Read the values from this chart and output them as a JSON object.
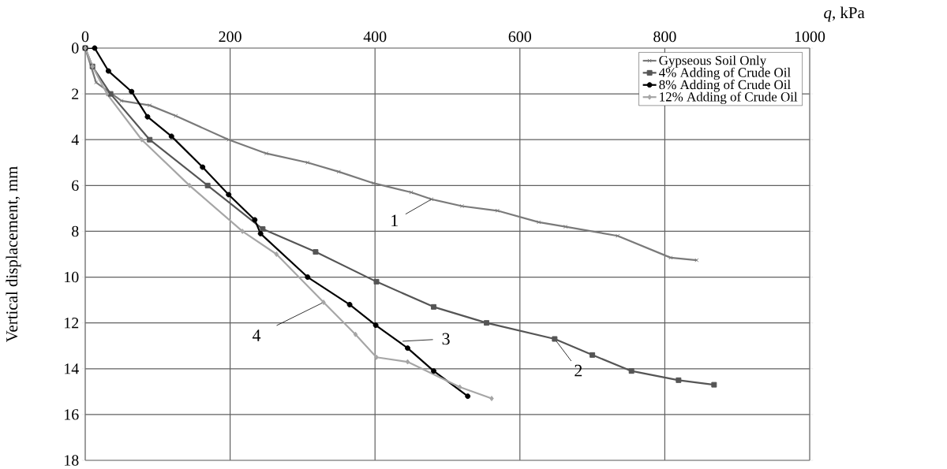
{
  "chart_data": {
    "type": "line",
    "xlabel": "*q*, kPa",
    "ylabel": "Vertical displacement, mm",
    "xlim": [
      0,
      1000
    ],
    "xticks": [
      0,
      200,
      400,
      600,
      800,
      1000
    ],
    "ylim": [
      18,
      0
    ],
    "yticks": [
      0,
      2,
      4,
      6,
      8,
      10,
      12,
      14,
      16,
      18
    ],
    "grid": true,
    "legend": "top right",
    "line_style": "solid",
    "series": [
      {
        "name": "Gypseous Soil Only",
        "color": "#7a7a7a",
        "marker": "cross",
        "x": [
          0,
          15,
          50,
          89,
          125,
          198,
          250,
          307,
          350,
          398,
          450,
          478,
          520,
          569,
          626,
          663,
          735,
          808,
          844
        ],
        "values": [
          0,
          1.5,
          2.3,
          2.5,
          2.96,
          4.0,
          4.6,
          5.0,
          5.4,
          5.9,
          6.3,
          6.6,
          6.9,
          7.1,
          7.6,
          7.8,
          8.2,
          9.15,
          9.26
        ]
      },
      {
        "name": "4% Adding of Crude Oil",
        "color": "#555555",
        "marker": "square",
        "x": [
          0,
          10,
          35,
          89,
          169,
          245,
          318,
          402,
          481,
          554,
          648,
          700,
          754,
          819,
          868
        ],
        "values": [
          0,
          0.8,
          2.0,
          4.0,
          6.0,
          7.9,
          8.9,
          10.2,
          11.3,
          12.0,
          12.7,
          13.4,
          14.1,
          14.5,
          14.7
        ]
      },
      {
        "name": "8% Adding of Crude Oil",
        "color": "#000000",
        "marker": "circle",
        "x": [
          0,
          13,
          32,
          64,
          86,
          119,
          162,
          198,
          234,
          242,
          307,
          365,
          401,
          445,
          481,
          528
        ],
        "values": [
          0,
          0,
          1.0,
          1.9,
          3.0,
          3.85,
          5.2,
          6.4,
          7.5,
          8.1,
          10.0,
          11.2,
          12.1,
          13.1,
          14.1,
          15.2
        ]
      },
      {
        "name": "12% Adding of Crude Oil",
        "color": "#a6a6a6",
        "marker": "diamond",
        "x": [
          0,
          10,
          30,
          78,
          144,
          217,
          264,
          329,
          373,
          402,
          445,
          517,
          561
        ],
        "values": [
          0,
          0.8,
          2.0,
          4.0,
          6.0,
          8.0,
          9.0,
          11.1,
          12.5,
          13.5,
          13.7,
          14.8,
          15.3
        ]
      }
    ],
    "annotations": [
      {
        "text": "1",
        "x": 478,
        "y": 6.6
      },
      {
        "text": "2",
        "x": 648,
        "y": 12.7
      },
      {
        "text": "3",
        "x": 438,
        "y": 12.8
      },
      {
        "text": "4",
        "x": 329,
        "y": 11.1
      }
    ]
  }
}
